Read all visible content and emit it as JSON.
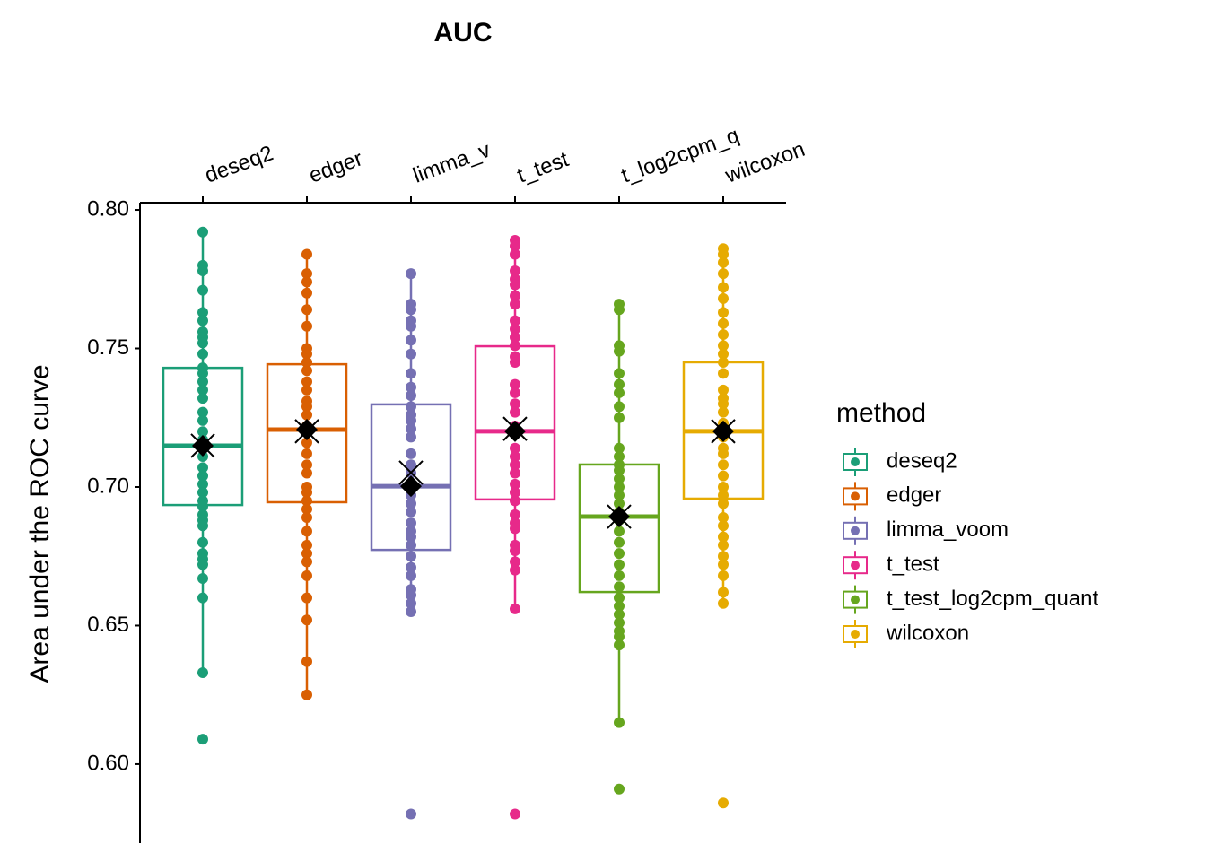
{
  "chart_data": {
    "type": "box",
    "title": "AUC",
    "y_label": "Area under the ROC curve",
    "legend_title": "method",
    "categories": [
      "deseq2",
      "edger",
      "limma_v",
      "t_test",
      "t_log2cpm_q",
      "wilcoxon"
    ],
    "ylim": [
      0.5715,
      0.8026
    ],
    "yticks": [
      {
        "value": 0.6,
        "label": "0.60"
      },
      0.65,
      {
        "value": 0.7,
        "label": "0.70"
      },
      0.75,
      {
        "value": 0.8,
        "label": "0.80"
      }
    ],
    "series": [
      {
        "name": "deseq2",
        "color": "#1b9e77",
        "q1": 0.6935,
        "median": 0.7149,
        "q3": 0.743,
        "whisker_low": 0.633,
        "whisker_high": 0.7922,
        "diamond": 0.7149,
        "cross": 0.7149,
        "points": [
          0.792,
          0.78,
          0.778,
          0.771,
          0.763,
          0.76,
          0.756,
          0.754,
          0.752,
          0.748,
          0.743,
          0.741,
          0.738,
          0.735,
          0.732,
          0.727,
          0.724,
          0.72,
          0.717,
          0.714,
          0.711,
          0.707,
          0.704,
          0.701,
          0.698,
          0.695,
          0.693,
          0.69,
          0.688,
          0.686,
          0.68,
          0.676,
          0.674,
          0.672,
          0.667,
          0.66,
          0.633,
          0.609
        ]
      },
      {
        "name": "edger",
        "color": "#d95f02",
        "q1": 0.6945,
        "median": 0.7207,
        "q3": 0.7443,
        "whisker_low": 0.6259,
        "whisker_high": 0.7841,
        "diamond": 0.7207,
        "cross": 0.7201,
        "points": [
          0.784,
          0.777,
          0.774,
          0.77,
          0.764,
          0.758,
          0.75,
          0.748,
          0.745,
          0.742,
          0.738,
          0.735,
          0.731,
          0.729,
          0.726,
          0.722,
          0.72,
          0.716,
          0.712,
          0.708,
          0.705,
          0.7,
          0.698,
          0.695,
          0.692,
          0.689,
          0.684,
          0.679,
          0.676,
          0.673,
          0.668,
          0.66,
          0.652,
          0.637,
          0.625
        ]
      },
      {
        "name": "limma_voom",
        "color": "#7570b3",
        "q1": 0.6773,
        "median": 0.7003,
        "q3": 0.7298,
        "whisker_low": 0.6547,
        "whisker_high": 0.7777,
        "diamond": 0.7003,
        "cross": 0.7052,
        "points": [
          0.777,
          0.766,
          0.764,
          0.76,
          0.758,
          0.753,
          0.748,
          0.741,
          0.736,
          0.733,
          0.729,
          0.726,
          0.724,
          0.721,
          0.718,
          0.712,
          0.708,
          0.705,
          0.7,
          0.697,
          0.694,
          0.691,
          0.687,
          0.684,
          0.682,
          0.679,
          0.675,
          0.671,
          0.668,
          0.663,
          0.661,
          0.658,
          0.655,
          0.582
        ]
      },
      {
        "name": "t_test",
        "color": "#e7298a",
        "q1": 0.6955,
        "median": 0.7201,
        "q3": 0.7508,
        "whisker_low": 0.6566,
        "whisker_high": 0.7896,
        "diamond": 0.7201,
        "cross": 0.721,
        "points": [
          0.789,
          0.787,
          0.784,
          0.778,
          0.775,
          0.773,
          0.769,
          0.766,
          0.76,
          0.757,
          0.754,
          0.751,
          0.747,
          0.745,
          0.737,
          0.734,
          0.73,
          0.727,
          0.722,
          0.719,
          0.714,
          0.711,
          0.708,
          0.705,
          0.701,
          0.698,
          0.695,
          0.69,
          0.687,
          0.685,
          0.679,
          0.677,
          0.673,
          0.67,
          0.656,
          0.582
        ]
      },
      {
        "name": "t_test_log2cpm_quant",
        "color": "#66a61e",
        "q1": 0.6621,
        "median": 0.6893,
        "q3": 0.7081,
        "whisker_low": 0.6152,
        "whisker_high": 0.7657,
        "diamond": 0.6893,
        "cross": 0.6893,
        "points": [
          0.766,
          0.764,
          0.751,
          0.749,
          0.741,
          0.737,
          0.734,
          0.729,
          0.725,
          0.714,
          0.711,
          0.708,
          0.706,
          0.703,
          0.7,
          0.697,
          0.694,
          0.691,
          0.688,
          0.684,
          0.68,
          0.676,
          0.672,
          0.668,
          0.664,
          0.66,
          0.657,
          0.654,
          0.651,
          0.648,
          0.646,
          0.643,
          0.615,
          0.591
        ]
      },
      {
        "name": "wilcoxon",
        "color": "#e6ab02",
        "q1": 0.6958,
        "median": 0.7201,
        "q3": 0.745,
        "whisker_low": 0.6579,
        "whisker_high": 0.7858,
        "diamond": 0.7201,
        "cross": 0.7201,
        "points": [
          0.786,
          0.784,
          0.781,
          0.777,
          0.772,
          0.768,
          0.763,
          0.759,
          0.755,
          0.751,
          0.748,
          0.745,
          0.741,
          0.735,
          0.732,
          0.73,
          0.727,
          0.723,
          0.72,
          0.718,
          0.714,
          0.712,
          0.708,
          0.704,
          0.7,
          0.697,
          0.694,
          0.689,
          0.686,
          0.682,
          0.679,
          0.675,
          0.672,
          0.668,
          0.662,
          0.658,
          0.586
        ]
      }
    ]
  }
}
